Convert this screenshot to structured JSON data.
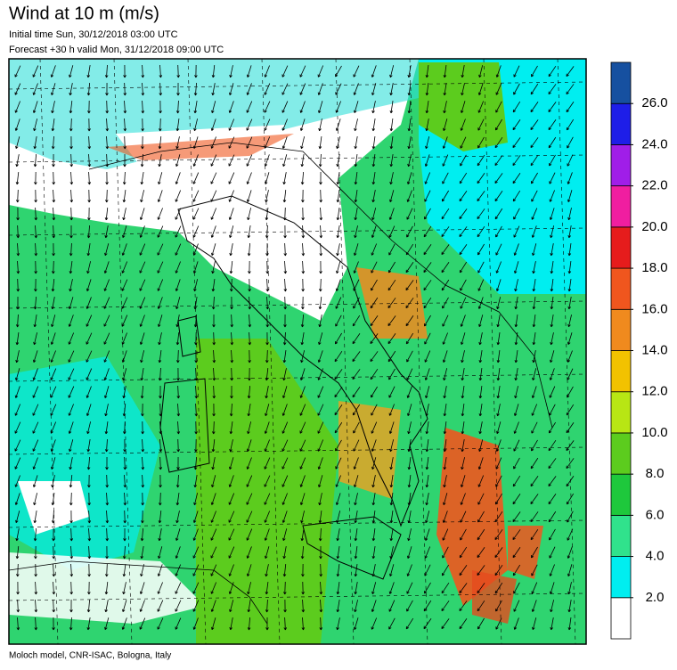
{
  "header": {
    "title": "Wind at 10 m (m/s)",
    "initial_time": "Initial time  Sun, 30/12/2018 03:00 UTC",
    "forecast": "Forecast +30 h valid  Mon, 31/12/2018 09:00 UTC"
  },
  "footer": "Moloch model, CNR-ISAC, Bologna, Italy",
  "colorbar": {
    "ticks": [
      {
        "value": 2,
        "label": "2.0"
      },
      {
        "value": 4,
        "label": "4.0"
      },
      {
        "value": 6,
        "label": "6.0"
      },
      {
        "value": 8,
        "label": "8.0"
      },
      {
        "value": 10,
        "label": "10.0"
      },
      {
        "value": 12,
        "label": "12.0"
      },
      {
        "value": 14,
        "label": "14.0"
      },
      {
        "value": 16,
        "label": "16.0"
      },
      {
        "value": 18,
        "label": "18.0"
      },
      {
        "value": 20,
        "label": "20.0"
      },
      {
        "value": 22,
        "label": "22.0"
      },
      {
        "value": 24,
        "label": "24.0"
      },
      {
        "value": 26,
        "label": "26.0"
      }
    ],
    "colors": [
      "#ffffff",
      "#00eef0",
      "#30e28c",
      "#1ec83c",
      "#5ccc1e",
      "#b8e614",
      "#f2c200",
      "#f08a1e",
      "#f0561e",
      "#e61c1c",
      "#f01ea0",
      "#a01ee8",
      "#1e1ee8",
      "#1650a0"
    ]
  }
}
